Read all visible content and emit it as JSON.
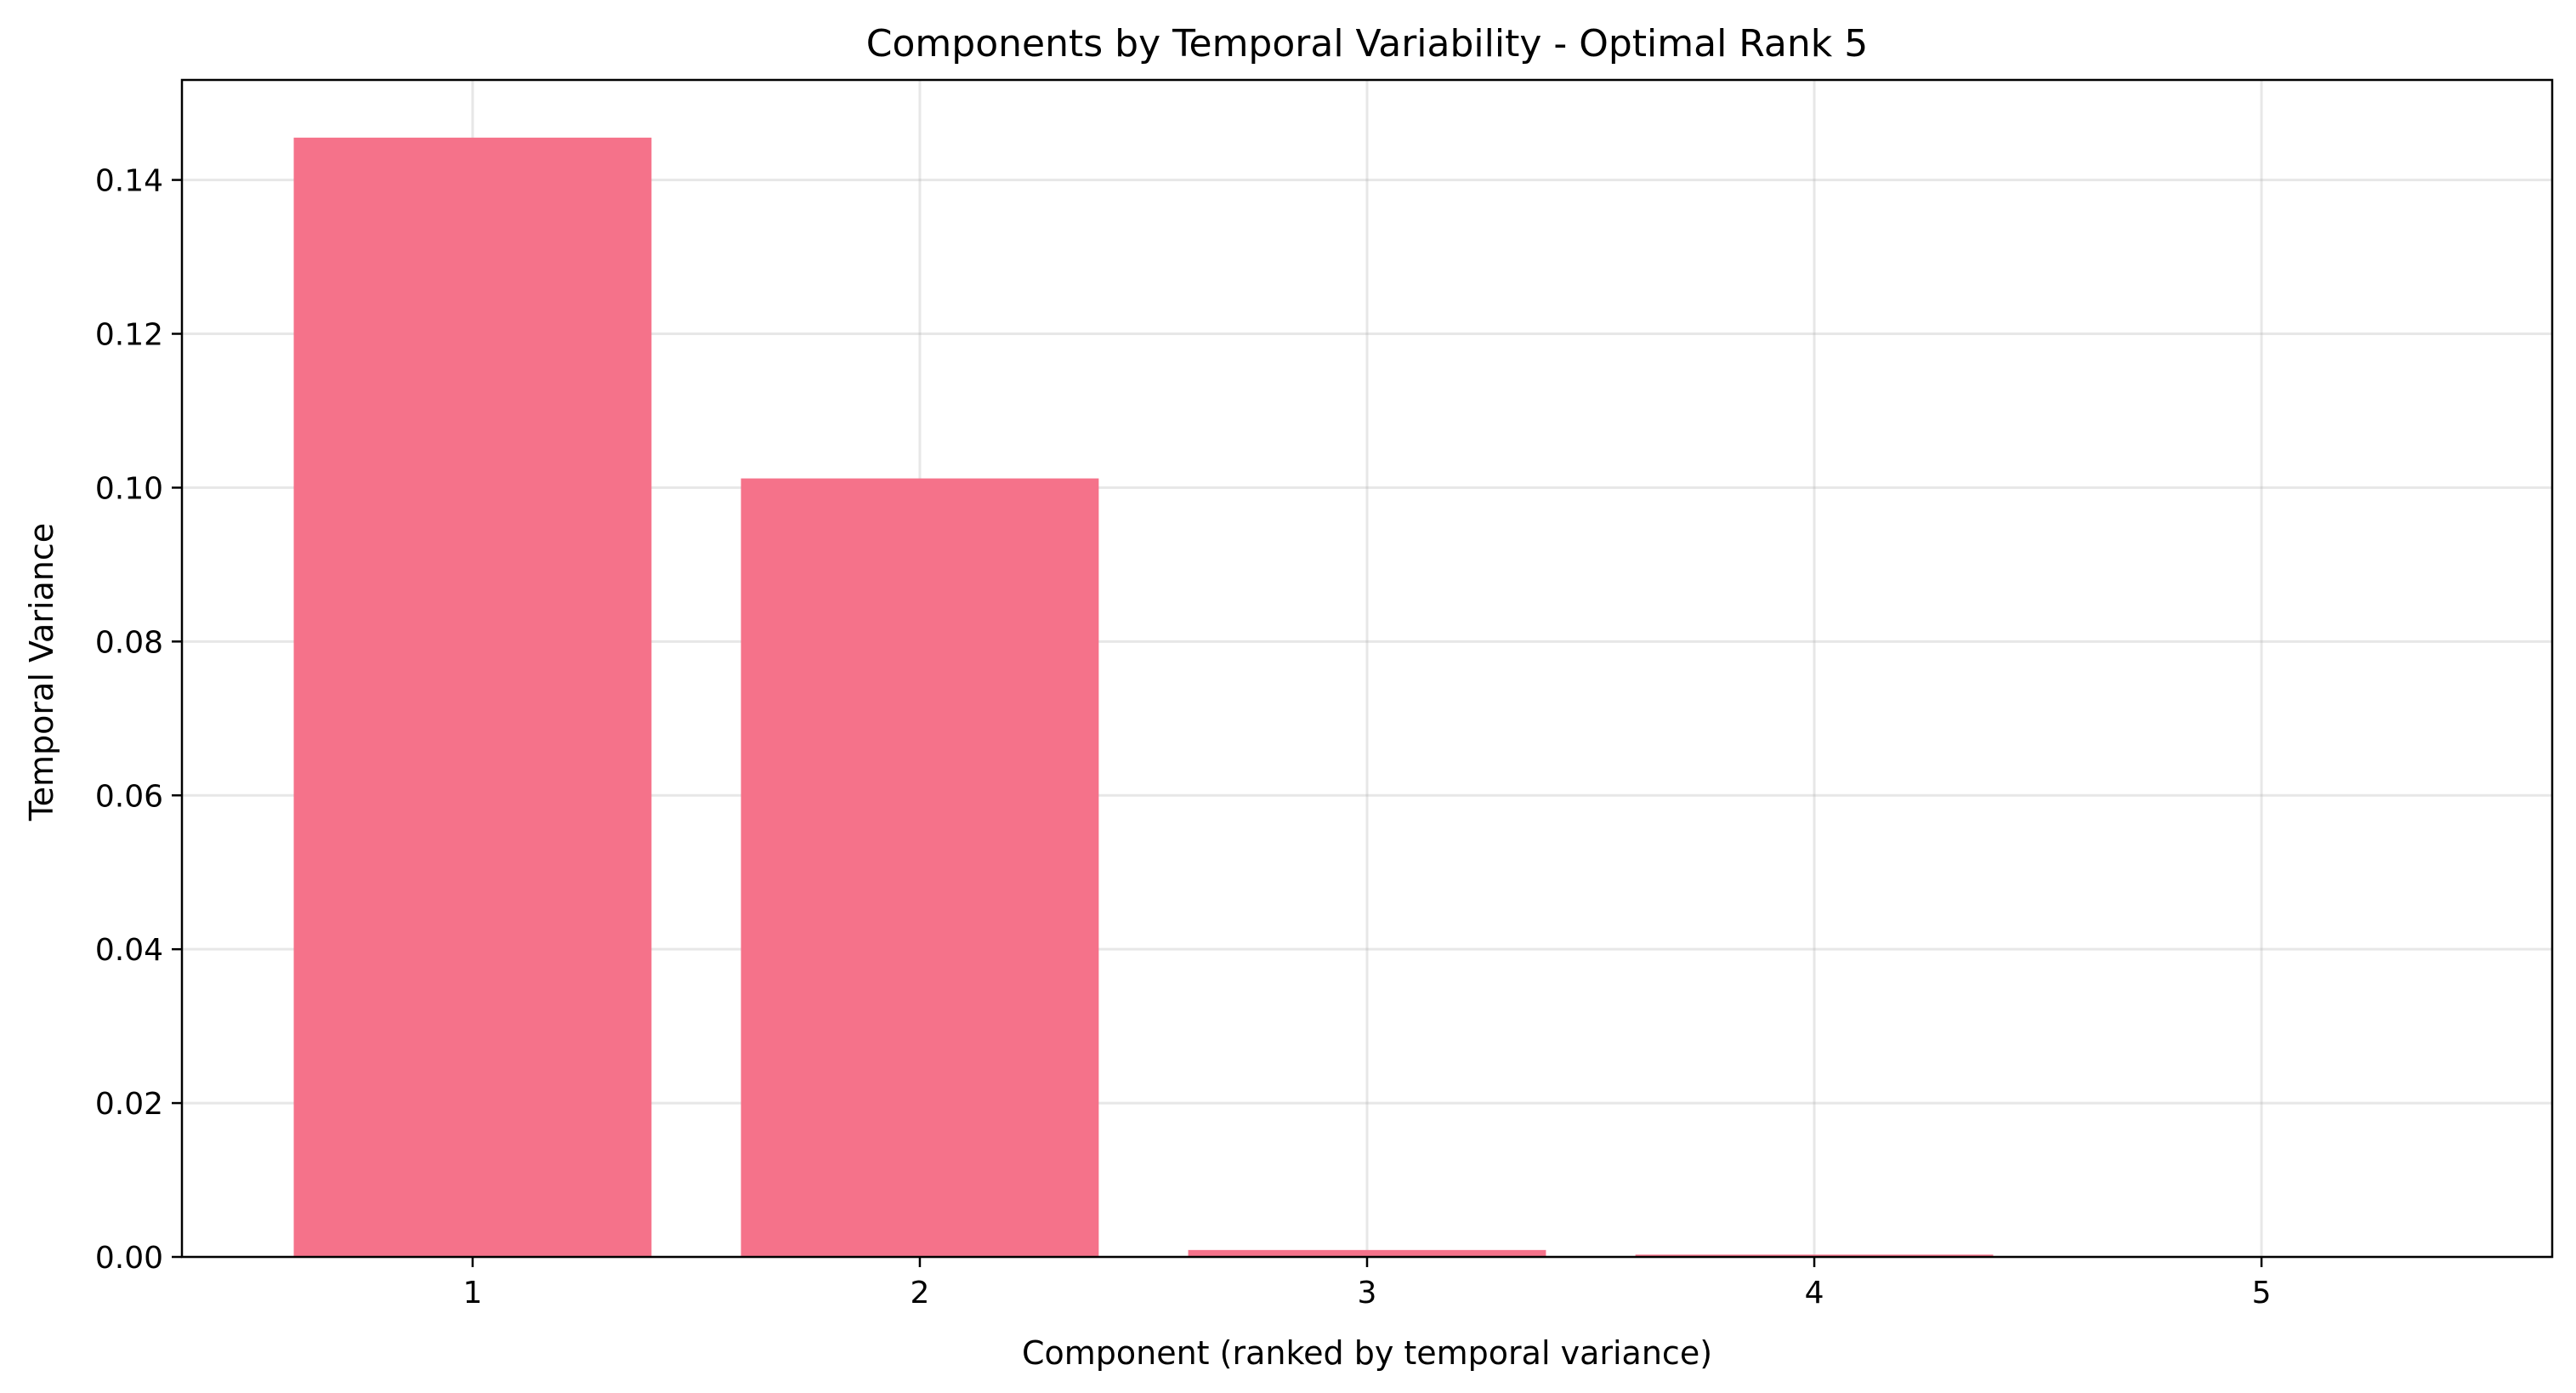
{
  "chart_data": {
    "type": "bar",
    "title": "Components by Temporal Variability - Optimal Rank 5",
    "xlabel": "Component (ranked by temporal variance)",
    "ylabel": "Temporal Variance",
    "categories": [
      "1",
      "2",
      "3",
      "4",
      "5"
    ],
    "values": [
      0.1455,
      0.1012,
      0.0009,
      0.0003,
      0.0
    ],
    "ylim": [
      0,
      0.153
    ],
    "xlim": [
      0.35,
      5.65
    ],
    "yticks": [
      0.0,
      0.02,
      0.04,
      0.06,
      0.08,
      0.1,
      0.12,
      0.14
    ],
    "ytick_labels": [
      "0.00",
      "0.02",
      "0.04",
      "0.06",
      "0.08",
      "0.10",
      "0.12",
      "0.14"
    ],
    "grid": true,
    "bar_color": "#f5728a"
  }
}
